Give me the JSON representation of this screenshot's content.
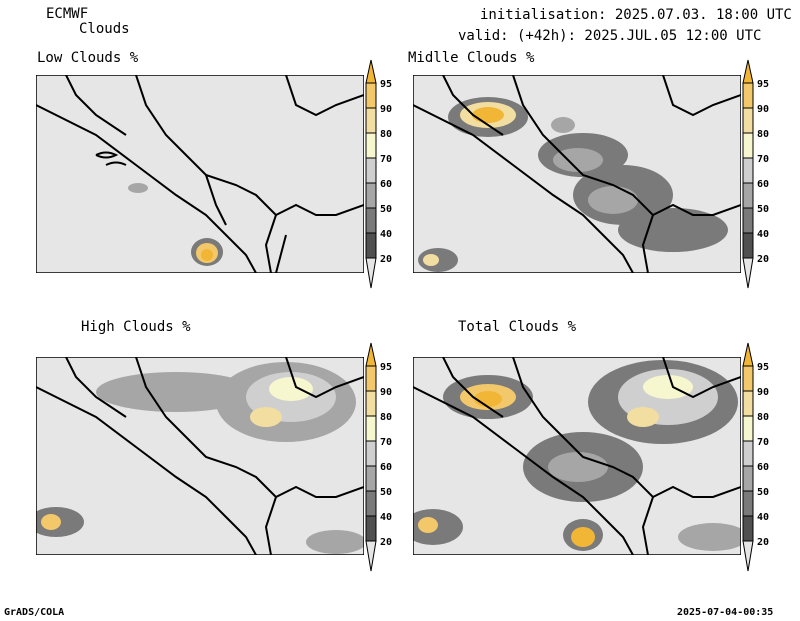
{
  "header": {
    "model": "ECMWF",
    "product": "Clouds",
    "init": "initialisation: 2025.07.03. 18:00 UTC",
    "valid": "valid: (+42h): 2025.JUL.05 12:00 UTC"
  },
  "panels": [
    {
      "id": "low",
      "title": "Low Clouds %"
    },
    {
      "id": "mid",
      "title": "Midlle Clouds %"
    },
    {
      "id": "high",
      "title": "High Clouds %"
    },
    {
      "id": "total",
      "title": "Total Clouds %"
    }
  ],
  "colorbar": {
    "labels": [
      "95",
      "90",
      "80",
      "70",
      "60",
      "50",
      "40",
      "20"
    ],
    "colors": [
      "#f2b636",
      "#f2c86a",
      "#f2dea0",
      "#f7f7cf",
      "#cfcfcf",
      "#a6a6a6",
      "#7a7a7a",
      "#505050",
      "#e6e6e6"
    ]
  },
  "footer": {
    "left": "GrADS/COLA",
    "right": "2025-07-04-00:35"
  }
}
